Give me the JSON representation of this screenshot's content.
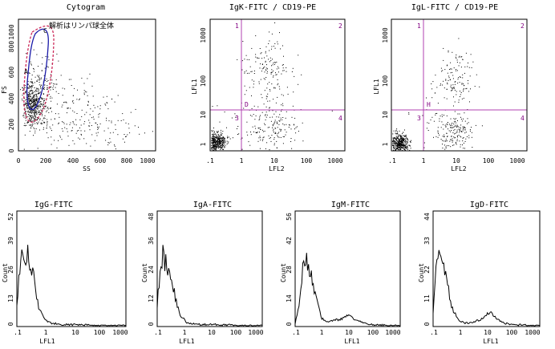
{
  "chart_data": [
    {
      "type": "scatter",
      "title": "Cytogram",
      "xlabel": "SS",
      "ylabel": "FS",
      "xticks": [
        "0",
        "200",
        "400",
        "600",
        "800",
        "1000"
      ],
      "yticks": [
        "0",
        "200",
        "400",
        "600",
        "800",
        "1000"
      ],
      "xlim": [
        0,
        1023
      ],
      "ylim": [
        0,
        1023
      ],
      "gate_label": "C",
      "region_label": "A",
      "annotation": "解析はリンパ球全体",
      "colors": {
        "gate": "#1a1aa8",
        "region": "#cc2a5a",
        "points": "#000000"
      }
    },
    {
      "type": "scatter",
      "title": "IgK-FITC / CD19-PE",
      "xlabel": "LFL2",
      "ylabel": "LFL1",
      "xscale": "log",
      "yscale": "log",
      "xticks": [
        ".1",
        "1",
        "10",
        "100",
        "1000"
      ],
      "yticks": [
        "1",
        "10",
        "100",
        "1000"
      ],
      "quadrant_labels": [
        "1",
        "2",
        "3",
        "4"
      ],
      "marker_label": "D",
      "colors": {
        "quadrant": "#b040b0",
        "points": "#000000"
      }
    },
    {
      "type": "scatter",
      "title": "IgL-FITC / CD19-PE",
      "xlabel": "LFL2",
      "ylabel": "LFL1",
      "xscale": "log",
      "yscale": "log",
      "xticks": [
        ".1",
        "1",
        "10",
        "100",
        "1000"
      ],
      "yticks": [
        "1",
        "10",
        "100",
        "1000"
      ],
      "quadrant_labels": [
        "1",
        "2",
        "3",
        "4"
      ],
      "marker_label": "H",
      "colors": {
        "quadrant": "#b040b0",
        "points": "#000000"
      }
    },
    {
      "type": "line",
      "title": "IgG-FITC",
      "xlabel": "LFL1",
      "ylabel": "Count",
      "xscale": "log",
      "xlim": [
        0.1,
        1000
      ],
      "ylim": [
        0,
        52
      ],
      "xticks": [
        ".1",
        "1",
        "10",
        "100",
        "1000"
      ],
      "yticks": [
        "0",
        "13",
        "26",
        "39",
        "52"
      ],
      "x": [
        0.1,
        0.13,
        0.16,
        0.2,
        0.25,
        0.32,
        0.4,
        0.5,
        0.63,
        0.8,
        1,
        1.3,
        1.6,
        2,
        3,
        5,
        10,
        20,
        50,
        100,
        1000
      ],
      "values": [
        10,
        26,
        32,
        30,
        33,
        27,
        24,
        15,
        9,
        6,
        3,
        2,
        1.5,
        1,
        1,
        0.5,
        0.5,
        0.5,
        0.3,
        0.1,
        0
      ]
    },
    {
      "type": "line",
      "title": "IgA-FITC",
      "xlabel": "LFL1",
      "ylabel": "Count",
      "xscale": "log",
      "xlim": [
        0.1,
        1000
      ],
      "ylim": [
        0,
        48
      ],
      "xticks": [
        ".1",
        "1",
        "10",
        "100",
        "1000"
      ],
      "yticks": [
        "0",
        "12",
        "24",
        "36",
        "48"
      ],
      "x": [
        0.1,
        0.13,
        0.16,
        0.2,
        0.25,
        0.32,
        0.4,
        0.5,
        0.63,
        0.8,
        1,
        1.3,
        1.6,
        2,
        3,
        5,
        10,
        20,
        50,
        100,
        1000
      ],
      "values": [
        8,
        24,
        30,
        26,
        25,
        20,
        16,
        12,
        7,
        4,
        3,
        1.5,
        1,
        1,
        0.5,
        0.5,
        0.5,
        0.5,
        0.3,
        0.1,
        0
      ]
    },
    {
      "type": "line",
      "title": "IgM-FITC",
      "xlabel": "LFL1",
      "ylabel": "Count",
      "xscale": "log",
      "xlim": [
        0.1,
        1000
      ],
      "ylim": [
        0,
        56
      ],
      "xticks": [
        ".1",
        "1",
        "10",
        "100",
        "1000"
      ],
      "yticks": [
        "0",
        "14",
        "28",
        "42",
        "56"
      ],
      "x": [
        0.1,
        0.13,
        0.16,
        0.2,
        0.25,
        0.32,
        0.4,
        0.5,
        0.63,
        0.8,
        1,
        1.3,
        1.6,
        2,
        3,
        5,
        8,
        10,
        15,
        20,
        30,
        50,
        100,
        1000
      ],
      "values": [
        1,
        8,
        18,
        28,
        32,
        30,
        26,
        20,
        14,
        8,
        4,
        2.5,
        2,
        2,
        3,
        3,
        4,
        5,
        4,
        3,
        2,
        1,
        0.5,
        0
      ]
    },
    {
      "type": "line",
      "title": "IgD-FITC",
      "xlabel": "LFL1",
      "ylabel": "Count",
      "xscale": "log",
      "xlim": [
        0.1,
        1000
      ],
      "ylim": [
        0,
        44
      ],
      "xticks": [
        ".1",
        "1",
        "10",
        "100",
        "1000"
      ],
      "yticks": [
        "0",
        "11",
        "22",
        "33",
        "44"
      ],
      "x": [
        0.1,
        0.13,
        0.16,
        0.2,
        0.25,
        0.32,
        0.4,
        0.5,
        0.63,
        0.8,
        1,
        1.3,
        1.6,
        2,
        3,
        5,
        8,
        10,
        15,
        20,
        30,
        50,
        100,
        1000
      ],
      "values": [
        5,
        22,
        28,
        25,
        24,
        18,
        12,
        8,
        5,
        3,
        2,
        1.5,
        1,
        1,
        1.5,
        2,
        3,
        4.5,
        5,
        4,
        2,
        1,
        0.5,
        0
      ]
    }
  ]
}
